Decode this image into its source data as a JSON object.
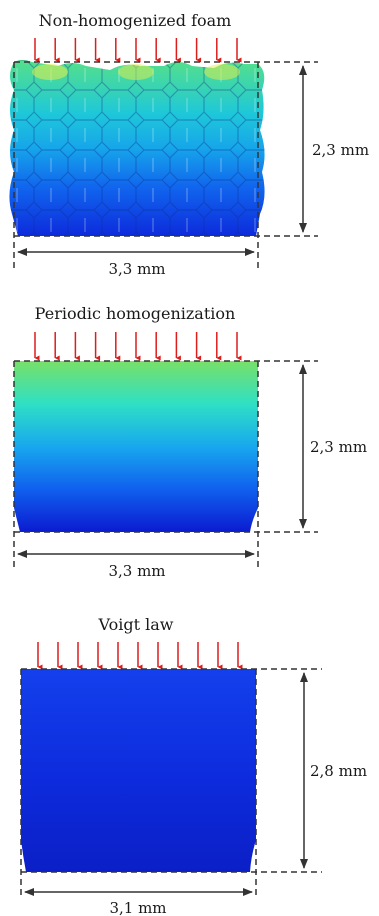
{
  "panels": [
    {
      "id": "non-homogenized",
      "title": "Non-homogenized foam",
      "height_label": "2,3 mm",
      "width_label": "3,3 mm",
      "arrow_count": 11,
      "colors": [
        "#55e08a",
        "#1fc8d8",
        "#16a6ea",
        "#1166ee",
        "#0d2bdc"
      ]
    },
    {
      "id": "periodic",
      "title": "Periodic homogenization",
      "height_label": "2,3 mm",
      "width_label": "3,3 mm",
      "arrow_count": 11,
      "colors": [
        "#78e068",
        "#2fe0c4",
        "#18a8ee",
        "#1060ee",
        "#0b1bd0"
      ]
    },
    {
      "id": "voigt",
      "title": "Voigt law",
      "height_label": "2,8 mm",
      "width_label": "3,1 mm",
      "arrow_count": 11,
      "colors": [
        "#1440ec",
        "#0d2bdc",
        "#0b1fc6"
      ]
    }
  ],
  "arrow_color": "#dd1c1c",
  "dim_color": "#333333"
}
